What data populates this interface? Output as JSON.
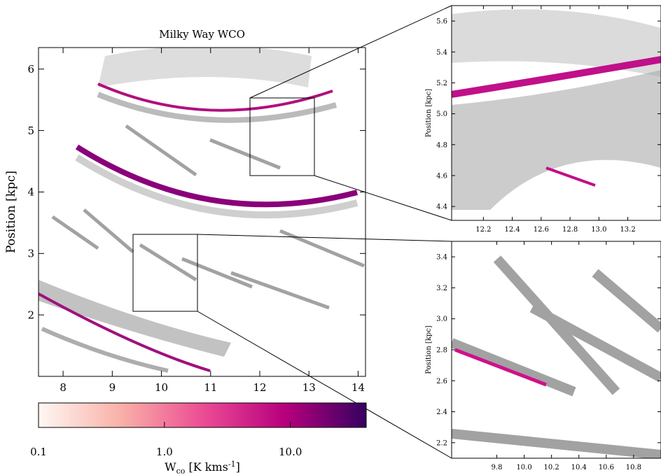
{
  "chart_data": [
    {
      "type": "image",
      "title": "Milky Way WCO",
      "ylabel": "Position [kpc]",
      "xlim": [
        7.5,
        14.15
      ],
      "ylim": [
        1.0,
        6.35
      ],
      "xticks": [
        8,
        9,
        10,
        11,
        12,
        13,
        14
      ],
      "yticks": [
        2,
        3,
        4,
        5,
        6
      ]
    },
    {
      "type": "image",
      "ylabel": "Position [kpc]",
      "xlim": [
        11.98,
        13.43
      ],
      "ylim": [
        4.31,
        5.7
      ],
      "xticks": [
        12.2,
        12.4,
        12.6,
        12.8,
        {
          "value": 13,
          "label": "13.0"
        },
        13.2
      ],
      "yticks": [
        4.4,
        4.6,
        4.8,
        {
          "value": 5,
          "label": "5.0"
        },
        5.2,
        5.4,
        5.6
      ]
    },
    {
      "type": "image",
      "ylabel": "Position [kpc]",
      "xlim": [
        9.47,
        11.0
      ],
      "ylim": [
        2.1,
        3.5
      ],
      "xticks": [
        9.8,
        {
          "value": 10,
          "label": "10.0"
        },
        10.2,
        10.4,
        10.6,
        10.8
      ],
      "yticks": [
        2.2,
        2.4,
        2.6,
        2.8,
        {
          "value": 3,
          "label": "3.0"
        },
        3.2,
        3.4
      ]
    },
    {
      "type": "colorbar",
      "log": true,
      "xlim": [
        0.1,
        40
      ],
      "xticks": [
        0.1,
        {
          "value": 1,
          "label": "1.0"
        },
        {
          "value": 10,
          "label": "10.0"
        }
      ],
      "xlabel": {
        "base": "W",
        "sub": "co",
        "mid": " [K kms",
        "sup": "-1",
        "end": "]"
      },
      "colors": [
        "#fff7f3",
        "#f9b1a8",
        "#ec4d94",
        "#b8007e",
        "#360161"
      ]
    }
  ]
}
